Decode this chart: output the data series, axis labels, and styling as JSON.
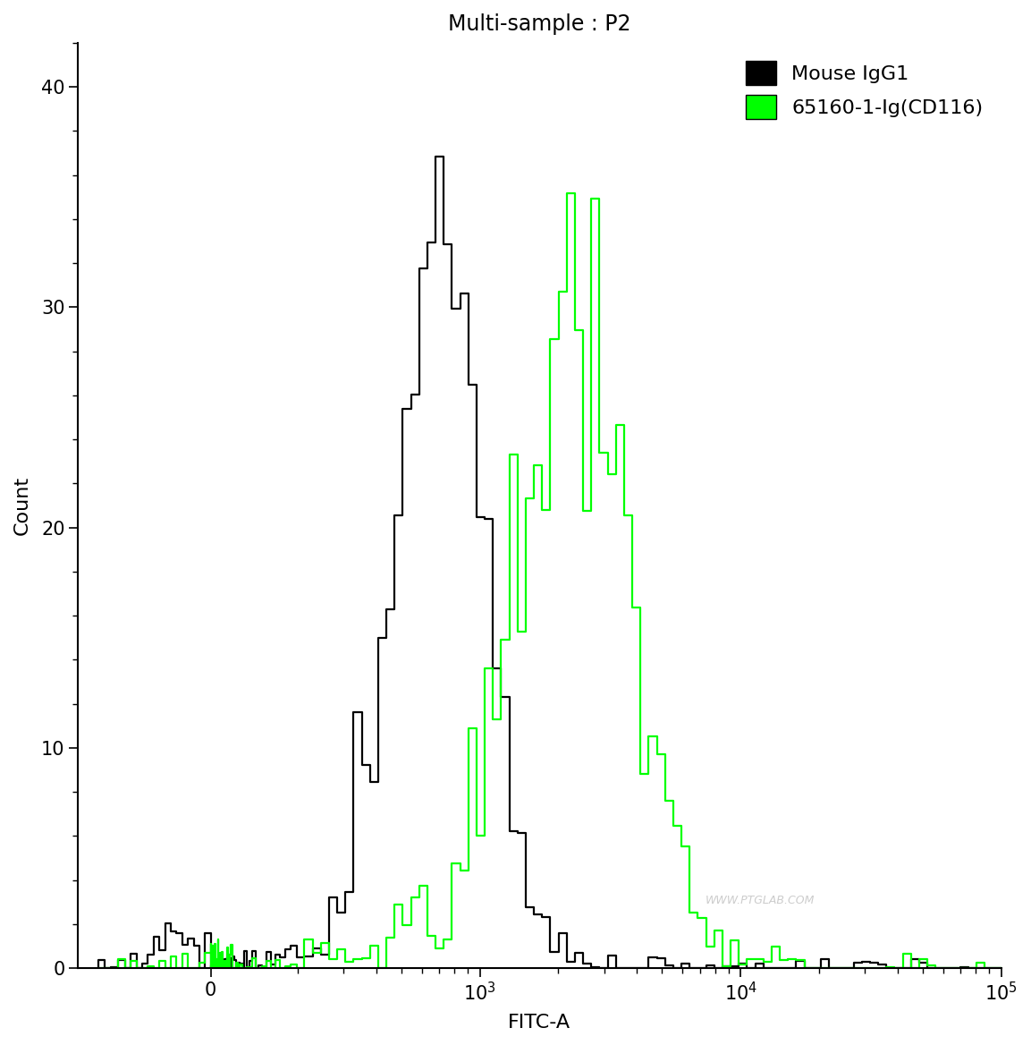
{
  "title": "Multi-sample : P2",
  "xlabel": "FITC-A",
  "ylabel": "Count",
  "ylim": [
    0,
    42
  ],
  "yticks": [
    0,
    10,
    20,
    30,
    40
  ],
  "legend_labels": [
    "Mouse IgG1",
    "65160-1-Ig(CD116)"
  ],
  "black_color": "#000000",
  "green_color": "#00ff00",
  "bg_color": "#ffffff",
  "title_fontsize": 17,
  "label_fontsize": 16,
  "tick_fontsize": 15,
  "legend_fontsize": 16,
  "line_width": 1.6,
  "watermark": "WWW.PTGLAB.COM",
  "linthresh": 200,
  "linscale": 0.3,
  "xlim_left": -300,
  "xlim_right": 100000
}
